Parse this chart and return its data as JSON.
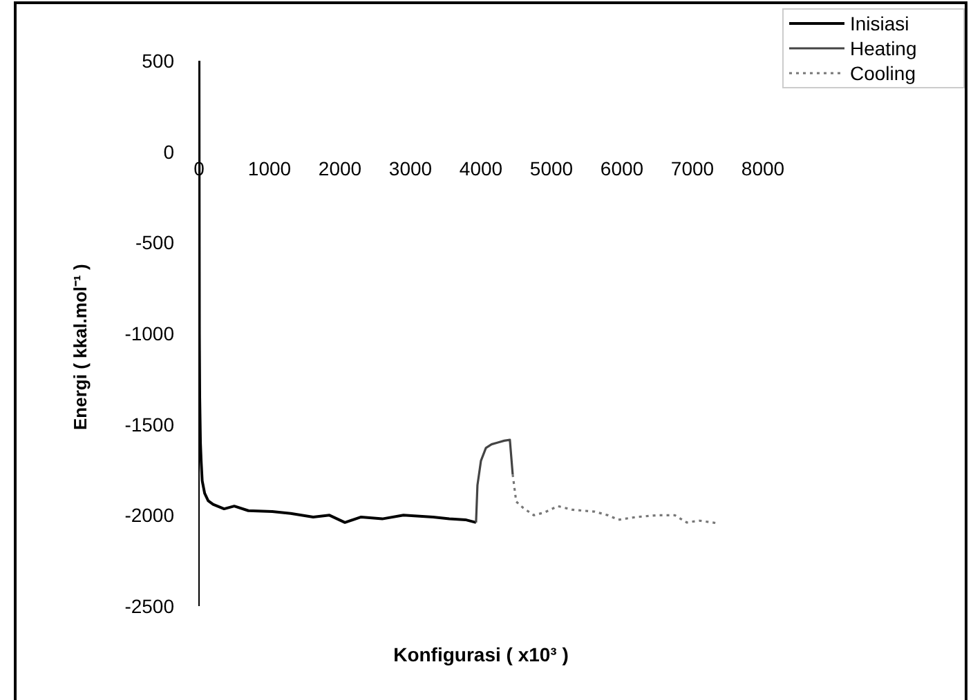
{
  "chart_data": {
    "type": "line",
    "xlabel": "Konfigurasi ( x10³ )",
    "ylabel": "Energi ( kkal.mol⁻¹ )",
    "xlim": [
      0,
      8000
    ],
    "ylim": [
      -2500,
      500
    ],
    "xticks": [
      0,
      1000,
      2000,
      3000,
      4000,
      5000,
      6000,
      7000,
      8000
    ],
    "yticks": [
      500,
      0,
      -500,
      -1000,
      -1500,
      -2000,
      -2500
    ],
    "grid": false,
    "legend": "top right",
    "marker": "none",
    "series": [
      {
        "name": "Inisiasi",
        "color": "#000000",
        "line_style": "solid",
        "x": [
          0,
          5,
          10,
          20,
          30,
          45,
          80,
          130,
          200,
          356,
          500,
          700,
          1040,
          1300,
          1620,
          1850,
          2070,
          2300,
          2600,
          2900,
          3320,
          3550,
          3780,
          3930
        ],
        "values": [
          500,
          -1000,
          -1350,
          -1600,
          -1700,
          -1810,
          -1880,
          -1920,
          -1940,
          -1965,
          -1950,
          -1975,
          -1980,
          -1990,
          -2010,
          -2000,
          -2040,
          -2010,
          -2020,
          -2000,
          -2010,
          -2020,
          -2025,
          -2040
        ]
      },
      {
        "name": "Heating",
        "color": "#444444",
        "line_style": "solid",
        "x": [
          3930,
          3950,
          4000,
          4070,
          4150,
          4240,
          4330,
          4410,
          4450
        ],
        "values": [
          -2040,
          -1835,
          -1700,
          -1630,
          -1610,
          -1600,
          -1590,
          -1585,
          -1775
        ]
      },
      {
        "name": "Cooling",
        "color": "#777777",
        "line_style": "dotted",
        "x": [
          4450,
          4500,
          4600,
          4750,
          4900,
          5090,
          5300,
          5610,
          5800,
          5950,
          6200,
          6500,
          6750,
          6920,
          7100,
          7375
        ],
        "values": [
          -1775,
          -1925,
          -1960,
          -2000,
          -1985,
          -1950,
          -1970,
          -1980,
          -2000,
          -2025,
          -2010,
          -2000,
          -2000,
          -2040,
          -2030,
          -2045
        ]
      }
    ]
  }
}
